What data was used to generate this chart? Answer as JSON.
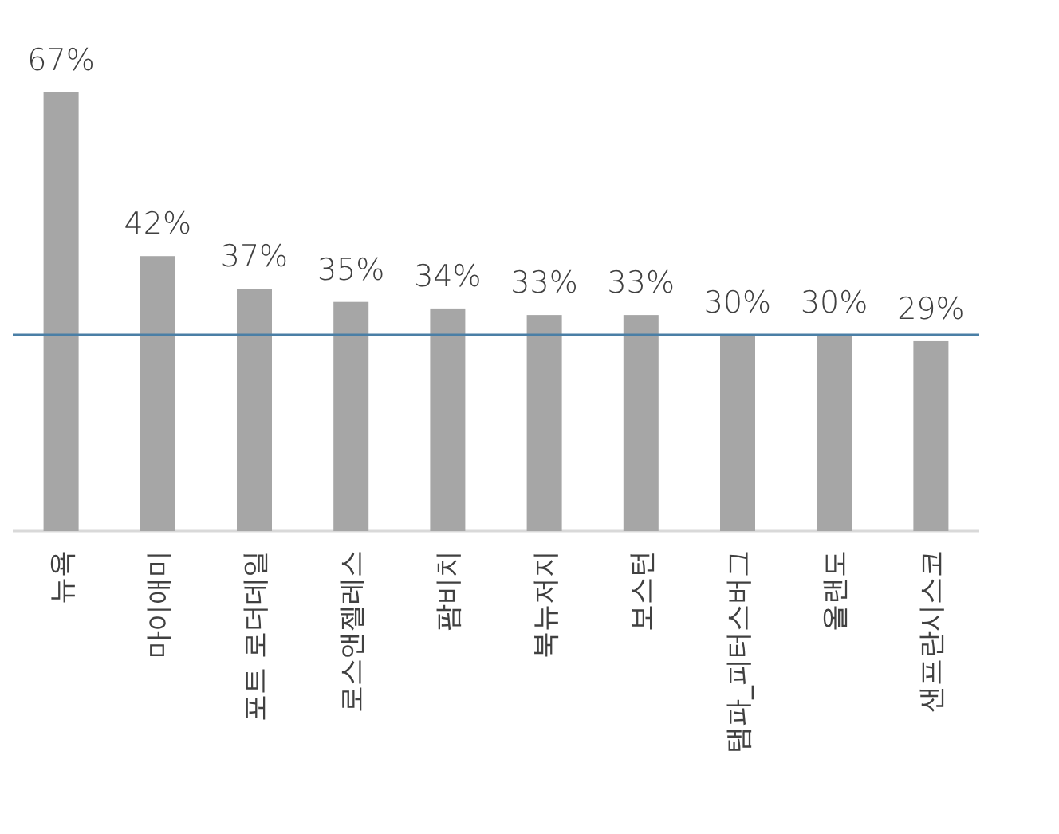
{
  "chart_data": {
    "type": "bar",
    "categories": [
      "뉴욕",
      "마이애미",
      "포트 로더데일",
      "로스앤젤레스",
      "팜비치",
      "북뉴저지",
      "보스턴",
      "탬파_피터스버그",
      "올랜도",
      "샌프란시스코"
    ],
    "values": [
      67,
      42,
      37,
      35,
      34,
      33,
      33,
      30,
      30,
      29
    ],
    "value_labels": [
      "67%",
      "42%",
      "37%",
      "35%",
      "34%",
      "33%",
      "33%",
      "30%",
      "30%",
      "29%"
    ],
    "color": "#a6a6a6",
    "ref_lines": [
      {
        "axis": "y",
        "value": 30,
        "color": "#4a7fa6"
      }
    ]
  }
}
